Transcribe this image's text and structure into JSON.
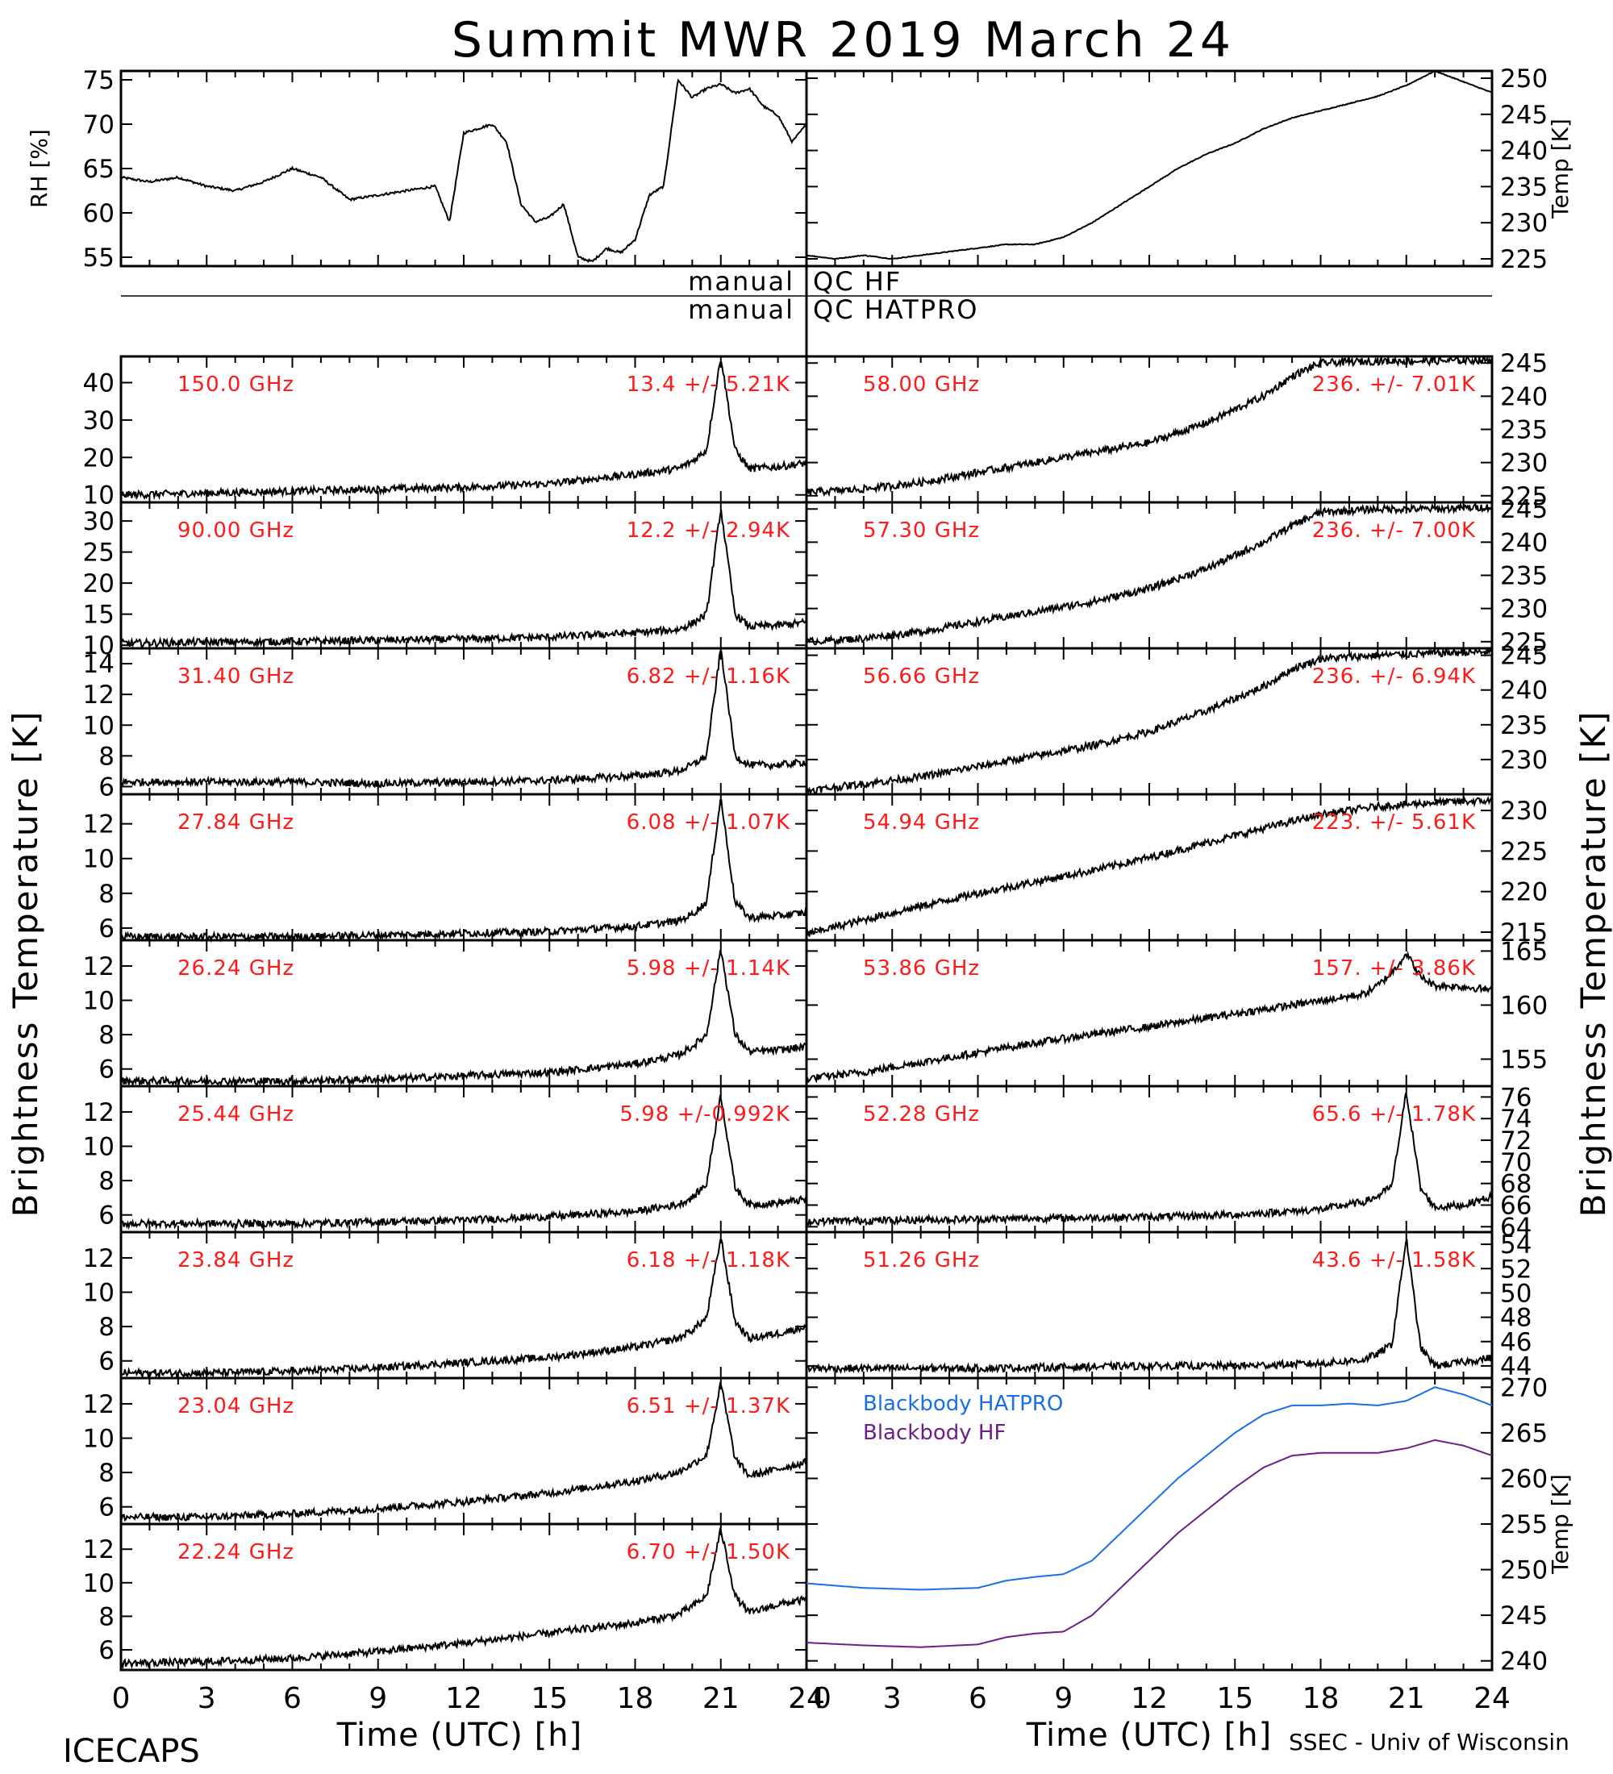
{
  "title": "Summit MWR 2019 March 24",
  "footer": {
    "left": "ICECAPS",
    "right": "SSEC - Univ of Wisconsin"
  },
  "xlabel": "Time (UTC) [h]",
  "qc": {
    "hf_left": "manual",
    "hf_right": "QC HF",
    "hat_left": "manual",
    "hat_right": "QC HATPRO"
  },
  "left_axis_label": "Brightness Temperature [K]",
  "right_axis_label": "Brightness Temperature [K]",
  "colors": {
    "data": "#000000",
    "annotation": "#ff1a1a",
    "hatpro": "#1a6fe8",
    "hf": "#6a1f8a"
  },
  "chart_data": [
    {
      "id": "rh",
      "type": "line",
      "ylabel": "RH [%]",
      "side": "left",
      "ylim": [
        54,
        76
      ],
      "yticks": [
        55,
        60,
        65,
        70,
        75
      ],
      "xlim": [
        0,
        24
      ],
      "x": [
        0,
        1,
        2,
        3,
        4,
        5,
        6,
        7,
        8,
        9,
        10,
        11,
        11.5,
        12,
        12.5,
        13,
        13.5,
        14,
        14.5,
        15,
        15.5,
        16,
        16.5,
        17,
        17.5,
        18,
        18.5,
        19,
        19.5,
        20,
        20.5,
        21,
        21.5,
        22,
        22.5,
        23,
        23.5,
        24
      ],
      "values": [
        64,
        63.5,
        64,
        63,
        62.5,
        63.5,
        65,
        64,
        61.5,
        62,
        62.5,
        63,
        59,
        69,
        69.5,
        70,
        68,
        61,
        59,
        59.5,
        61,
        55,
        54.5,
        56,
        55.5,
        57,
        62,
        63,
        75,
        73,
        74,
        74.5,
        73.5,
        74,
        72,
        71,
        68,
        70
      ]
    },
    {
      "id": "temp",
      "type": "line",
      "ylabel": "Temp [K]",
      "side": "right",
      "ylim": [
        224,
        251
      ],
      "yticks": [
        225,
        230,
        235,
        240,
        245,
        250
      ],
      "xlim": [
        0,
        24
      ],
      "x": [
        0,
        1,
        2,
        3,
        4,
        5,
        6,
        7,
        8,
        9,
        10,
        11,
        12,
        13,
        14,
        15,
        16,
        17,
        18,
        19,
        20,
        21,
        22,
        23,
        24
      ],
      "values": [
        225.5,
        225,
        225.5,
        225,
        225.5,
        226,
        226.5,
        227,
        227,
        228,
        230,
        232.5,
        235,
        237.5,
        239.5,
        241,
        243,
        244.5,
        245.5,
        246.5,
        247.5,
        249,
        251,
        249.5,
        248
      ]
    },
    {
      "id": "p150",
      "type": "line",
      "panel_label": "150.0 GHz",
      "stats": "13.4 +/- 5.21K",
      "side": "left",
      "ylim": [
        8,
        47
      ],
      "yticks": [
        10,
        20,
        30,
        40
      ],
      "xlim": [
        0,
        24
      ],
      "x": [
        0,
        3,
        6,
        9,
        12,
        15,
        18,
        19.5,
        20,
        20.5,
        21,
        21.5,
        22,
        23,
        24
      ],
      "values": [
        10,
        10.5,
        11,
        11.5,
        12,
        13,
        15.5,
        17,
        19,
        22,
        47,
        22,
        17,
        17.5,
        18.5
      ]
    },
    {
      "id": "p90",
      "type": "line",
      "panel_label": "90.00 GHz",
      "stats": "12.2 +/- 2.94K",
      "side": "left",
      "ylim": [
        9.5,
        33
      ],
      "yticks": [
        10,
        15,
        20,
        25,
        30
      ],
      "xlim": [
        0,
        24
      ],
      "x": [
        0,
        3,
        6,
        9,
        12,
        15,
        18,
        19.5,
        20,
        20.5,
        21,
        21.5,
        22,
        23,
        24
      ],
      "values": [
        10.3,
        10.5,
        10.6,
        10.8,
        11,
        11.3,
        12,
        12.5,
        13.5,
        15,
        32,
        15,
        13,
        13.2,
        13.7
      ]
    },
    {
      "id": "p3140",
      "type": "line",
      "panel_label": "31.40 GHz",
      "stats": "6.82 +/- 1.16K",
      "side": "left",
      "ylim": [
        5.5,
        15
      ],
      "yticks": [
        6,
        8,
        10,
        12,
        14
      ],
      "xlim": [
        0,
        24
      ],
      "x": [
        0,
        3,
        6,
        9,
        12,
        15,
        18,
        19.5,
        20,
        20.5,
        21,
        21.5,
        22,
        23,
        24
      ],
      "values": [
        6.3,
        6.3,
        6.3,
        6.2,
        6.3,
        6.4,
        6.7,
        7,
        7.4,
        8,
        15,
        8,
        7.4,
        7.4,
        7.6
      ]
    },
    {
      "id": "p2784",
      "type": "line",
      "panel_label": "27.84 GHz",
      "stats": "6.08 +/- 1.07K",
      "side": "left",
      "ylim": [
        5.3,
        13.7
      ],
      "yticks": [
        6,
        8,
        10,
        12
      ],
      "xlim": [
        0,
        24
      ],
      "x": [
        0,
        3,
        6,
        9,
        12,
        15,
        18,
        19.5,
        20,
        20.5,
        21,
        21.5,
        22,
        23,
        24
      ],
      "values": [
        5.5,
        5.5,
        5.5,
        5.6,
        5.7,
        5.8,
        6.1,
        6.4,
        6.8,
        7.5,
        13.5,
        7.5,
        6.6,
        6.7,
        6.9
      ]
    },
    {
      "id": "p2624",
      "type": "line",
      "panel_label": "26.24 GHz",
      "stats": "5.98 +/- 1.14K",
      "side": "left",
      "ylim": [
        5,
        13.5
      ],
      "yticks": [
        6,
        8,
        10,
        12
      ],
      "xlim": [
        0,
        24
      ],
      "x": [
        0,
        3,
        6,
        9,
        12,
        15,
        18,
        19.5,
        20,
        20.5,
        21,
        21.5,
        22,
        23,
        24
      ],
      "values": [
        5.3,
        5.3,
        5.3,
        5.4,
        5.6,
        5.8,
        6.3,
        6.8,
        7.3,
        8,
        13,
        8,
        7,
        7.1,
        7.3
      ]
    },
    {
      "id": "p2544",
      "type": "line",
      "panel_label": "25.44 GHz",
      "stats": "5.98 +/-0.992K",
      "side": "left",
      "ylim": [
        5,
        13.5
      ],
      "yticks": [
        6,
        8,
        10,
        12
      ],
      "xlim": [
        0,
        24
      ],
      "x": [
        0,
        3,
        6,
        9,
        12,
        15,
        18,
        19.5,
        20,
        20.5,
        21,
        21.5,
        22,
        23,
        24
      ],
      "values": [
        5.5,
        5.5,
        5.5,
        5.6,
        5.7,
        5.9,
        6.2,
        6.6,
        7,
        7.8,
        13,
        7.6,
        6.6,
        6.7,
        6.9
      ]
    },
    {
      "id": "p2384",
      "type": "line",
      "panel_label": "23.84 GHz",
      "stats": "6.18 +/- 1.18K",
      "side": "left",
      "ylim": [
        5,
        13.5
      ],
      "yticks": [
        6,
        8,
        10,
        12
      ],
      "xlim": [
        0,
        24
      ],
      "x": [
        0,
        3,
        6,
        9,
        12,
        15,
        18,
        19.5,
        20,
        20.5,
        21,
        21.5,
        22,
        23,
        24
      ],
      "values": [
        5.3,
        5.3,
        5.4,
        5.6,
        5.9,
        6.2,
        6.8,
        7.3,
        7.8,
        8.5,
        13.2,
        8.3,
        7.3,
        7.6,
        8
      ]
    },
    {
      "id": "p2304",
      "type": "line",
      "panel_label": "23.04 GHz",
      "stats": "6.51 +/- 1.37K",
      "side": "left",
      "ylim": [
        5,
        13.5
      ],
      "yticks": [
        6,
        8,
        10,
        12
      ],
      "xlim": [
        0,
        24
      ],
      "x": [
        0,
        3,
        6,
        9,
        12,
        15,
        18,
        19.5,
        20,
        20.5,
        21,
        21.5,
        22,
        23,
        24
      ],
      "values": [
        5.4,
        5.4,
        5.6,
        5.9,
        6.3,
        6.8,
        7.5,
        8,
        8.5,
        9,
        13.2,
        8.8,
        7.8,
        8.2,
        8.6
      ]
    },
    {
      "id": "p2224",
      "type": "line",
      "panel_label": "22.24 GHz",
      "stats": "6.70 +/- 1.50K",
      "side": "left",
      "ylim": [
        4.8,
        13.5
      ],
      "yticks": [
        6,
        8,
        10,
        12
      ],
      "xlim": [
        0,
        24
      ],
      "x": [
        0,
        3,
        6,
        9,
        12,
        15,
        18,
        19.5,
        20,
        20.5,
        21,
        21.5,
        22,
        23,
        24
      ],
      "values": [
        5.2,
        5.3,
        5.5,
        5.9,
        6.4,
        7,
        7.6,
        8.1,
        8.6,
        9.2,
        13.2,
        9.2,
        8.2,
        8.7,
        9
      ]
    },
    {
      "id": "p5800",
      "type": "line",
      "panel_label": "58.00 GHz",
      "stats": "236. +/- 7.01K",
      "side": "right",
      "ylim": [
        224,
        246
      ],
      "yticks": [
        225,
        230,
        235,
        240,
        245
      ],
      "xlim": [
        0,
        24
      ],
      "x": [
        0,
        2,
        4,
        6,
        8,
        10,
        12,
        14,
        16,
        17,
        18,
        20,
        22,
        24
      ],
      "values": [
        225.5,
        226,
        227,
        228.5,
        230,
        231.5,
        233,
        236,
        240,
        243,
        245,
        245.3,
        245.3,
        245.5
      ]
    },
    {
      "id": "p5730",
      "type": "line",
      "panel_label": "57.30 GHz",
      "stats": "236. +/- 7.00K",
      "side": "right",
      "ylim": [
        224,
        246
      ],
      "yticks": [
        225,
        230,
        235,
        240,
        245
      ],
      "xlim": [
        0,
        24
      ],
      "x": [
        0,
        2,
        4,
        6,
        8,
        10,
        12,
        14,
        16,
        17,
        18,
        20,
        22,
        24
      ],
      "values": [
        225,
        225.5,
        226.5,
        228,
        229.5,
        231,
        233,
        236,
        240,
        242.5,
        244.5,
        245,
        245,
        245.3
      ]
    },
    {
      "id": "p5666",
      "type": "line",
      "panel_label": "56.66 GHz",
      "stats": "236. +/- 6.94K",
      "side": "right",
      "ylim": [
        225,
        246
      ],
      "yticks": [
        230,
        235,
        240,
        245
      ],
      "xlim": [
        0,
        24
      ],
      "x": [
        0,
        2,
        4,
        6,
        8,
        10,
        12,
        14,
        16,
        17,
        18,
        20,
        22,
        24
      ],
      "values": [
        225.5,
        226.5,
        227.5,
        229,
        230.5,
        232,
        234,
        237,
        240.5,
        243,
        244.5,
        245,
        245.3,
        245.5
      ]
    },
    {
      "id": "p5494",
      "type": "line",
      "panel_label": "54.94 GHz",
      "stats": "223. +/- 5.61K",
      "side": "right",
      "ylim": [
        214,
        232
      ],
      "yticks": [
        215,
        220,
        225,
        230
      ],
      "xlim": [
        0,
        24
      ],
      "x": [
        0,
        2,
        4,
        6,
        8,
        10,
        12,
        14,
        16,
        18,
        20,
        22,
        24
      ],
      "values": [
        214.8,
        216.5,
        218.2,
        219.8,
        221.2,
        222.6,
        224.2,
        226,
        227.8,
        229.5,
        230.5,
        231,
        231.2
      ]
    },
    {
      "id": "p5386",
      "type": "line",
      "panel_label": "53.86 GHz",
      "stats": "157. +/- 3.86K",
      "side": "right",
      "ylim": [
        152.5,
        166
      ],
      "yticks": [
        155,
        160,
        165
      ],
      "xlim": [
        0,
        24
      ],
      "x": [
        0,
        2,
        4,
        6,
        8,
        10,
        12,
        14,
        16,
        18,
        19.5,
        20,
        20.5,
        21,
        21.5,
        22,
        23,
        24
      ],
      "values": [
        153.2,
        153.8,
        154.7,
        155.6,
        156.5,
        157.3,
        158,
        158.8,
        159.6,
        160.4,
        161,
        161.8,
        163,
        164.8,
        162.6,
        161.8,
        161.7,
        161.4
      ]
    },
    {
      "id": "p5228",
      "type": "line",
      "panel_label": "52.28 GHz",
      "stats": "65.6 +/- 1.78K",
      "side": "right",
      "ylim": [
        63.5,
        77
      ],
      "yticks": [
        64,
        66,
        68,
        70,
        72,
        74,
        76
      ],
      "xlim": [
        0,
        24
      ],
      "x": [
        0,
        3,
        6,
        9,
        12,
        15,
        18,
        19.5,
        20,
        20.5,
        21,
        21.5,
        22,
        23,
        24
      ],
      "values": [
        64.5,
        64.6,
        64.7,
        64.8,
        64.9,
        65.1,
        65.6,
        66.3,
        66.8,
        67.8,
        76.5,
        67.5,
        65.8,
        66,
        66.8
      ]
    },
    {
      "id": "p5126",
      "type": "line",
      "panel_label": "51.26 GHz",
      "stats": "43.6 +/- 1.58K",
      "side": "right",
      "ylim": [
        43,
        55
      ],
      "yticks": [
        44,
        46,
        48,
        50,
        52,
        54
      ],
      "xlim": [
        0,
        24
      ],
      "x": [
        0,
        3,
        6,
        9,
        12,
        15,
        18,
        19.5,
        20,
        20.5,
        21,
        21.5,
        22,
        23,
        24
      ],
      "values": [
        43.8,
        43.8,
        43.8,
        43.9,
        44,
        44,
        44.2,
        44.5,
        45,
        45.8,
        54.5,
        45.5,
        44,
        44.3,
        44.7
      ]
    },
    {
      "id": "bb",
      "type": "line",
      "ylabel": "Temp [K]",
      "side": "right",
      "ylim": [
        239,
        271
      ],
      "yticks": [
        240,
        245,
        250,
        255,
        260,
        265,
        270
      ],
      "xlim": [
        0,
        24
      ],
      "series": [
        {
          "name": "Blackbody HATPRO",
          "x": [
            0,
            2,
            4,
            6,
            7,
            8,
            9,
            10,
            11,
            12,
            13,
            14,
            15,
            16,
            17,
            18,
            19,
            20,
            21,
            22,
            23,
            24
          ],
          "values": [
            248.5,
            248,
            247.8,
            248,
            248.8,
            249.2,
            249.5,
            251,
            254,
            257,
            260,
            262.5,
            265,
            267,
            268,
            268,
            268.2,
            268,
            268.5,
            270,
            269.2,
            268
          ]
        },
        {
          "name": "Blackbody HF",
          "x": [
            0,
            2,
            4,
            6,
            7,
            8,
            9,
            10,
            11,
            12,
            13,
            14,
            15,
            16,
            17,
            18,
            19,
            20,
            21,
            22,
            23,
            24
          ],
          "values": [
            242,
            241.7,
            241.5,
            241.8,
            242.6,
            243,
            243.2,
            245,
            248,
            251,
            254,
            256.5,
            259,
            261.2,
            262.5,
            262.8,
            262.8,
            262.8,
            263.3,
            264.2,
            263.6,
            262.5
          ]
        }
      ]
    }
  ],
  "x_ticks": [
    "0",
    "3",
    "6",
    "9",
    "12",
    "15",
    "18",
    "21",
    "24"
  ]
}
